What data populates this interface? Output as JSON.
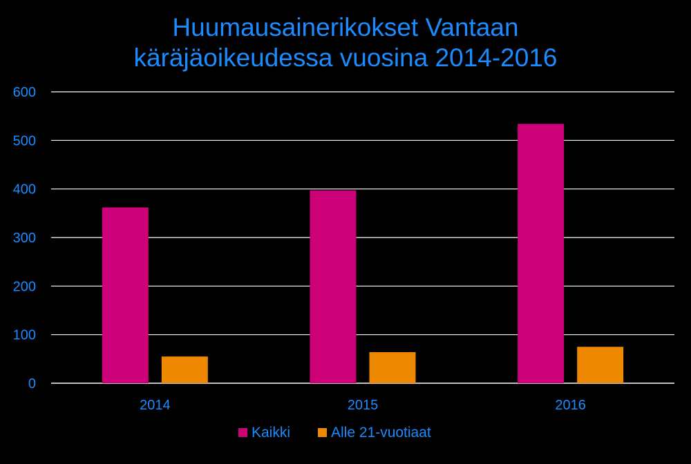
{
  "chart_data": {
    "type": "bar",
    "title_lines": [
      "Huumausainerikokset Vantaan",
      "käräjäoikeudessa vuosina 2014-2016"
    ],
    "categories": [
      "2014",
      "2015",
      "2016"
    ],
    "series": [
      {
        "name": "Kaikki",
        "color": "#cc0077",
        "values": [
          362,
          397,
          534
        ]
      },
      {
        "name": "Alle 21-vuotiaat",
        "color": "#ee8800",
        "values": [
          55,
          64,
          75
        ]
      }
    ],
    "ylim": [
      0,
      600
    ],
    "yticks": [
      "0",
      "100",
      "200",
      "300",
      "400",
      "500",
      "600"
    ],
    "grid": true,
    "legend_position": "bottom",
    "colors": {
      "background": "#000000",
      "text": "#1a8cff",
      "grid": "#ffffff"
    }
  }
}
